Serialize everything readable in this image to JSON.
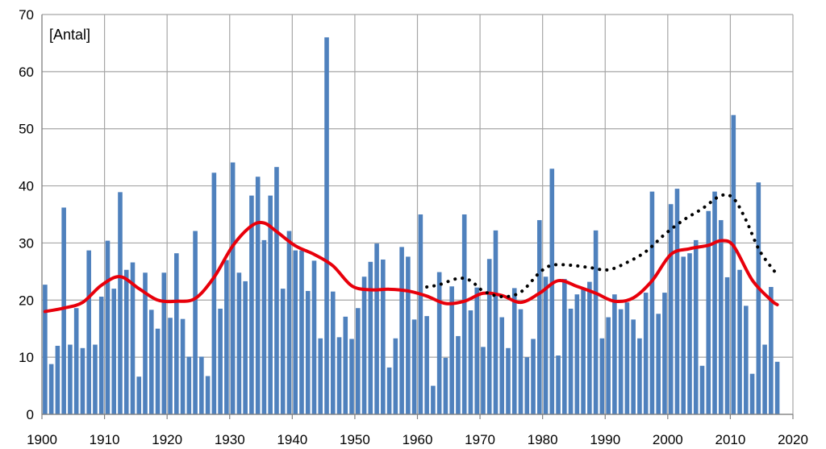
{
  "chart_data": {
    "type": "bar",
    "unit_label": "[Antal]",
    "x_range": [
      1900,
      2020
    ],
    "ylim": [
      0,
      70
    ],
    "x_ticks": [
      "1900",
      "1910",
      "1920",
      "1930",
      "1940",
      "1950",
      "1960",
      "1970",
      "1980",
      "1990",
      "2000",
      "2010",
      "2020"
    ],
    "y_ticks": [
      "0",
      "10",
      "20",
      "30",
      "40",
      "50",
      "60",
      "70"
    ],
    "grid": true,
    "colors": {
      "bars": "#4F81BD",
      "smooth": "#E8000B",
      "dotted": "#000000",
      "grid": "#A6A6A6"
    },
    "bars": {
      "x": [
        1900,
        1901,
        1902,
        1903,
        1904,
        1905,
        1906,
        1907,
        1908,
        1909,
        1910,
        1911,
        1912,
        1913,
        1914,
        1915,
        1916,
        1917,
        1918,
        1919,
        1920,
        1921,
        1922,
        1923,
        1924,
        1925,
        1926,
        1927,
        1928,
        1929,
        1930,
        1931,
        1932,
        1933,
        1934,
        1935,
        1936,
        1937,
        1938,
        1939,
        1940,
        1941,
        1942,
        1943,
        1944,
        1945,
        1946,
        1947,
        1948,
        1949,
        1950,
        1951,
        1952,
        1953,
        1954,
        1955,
        1956,
        1957,
        1958,
        1959,
        1960,
        1961,
        1962,
        1963,
        1964,
        1965,
        1966,
        1967,
        1968,
        1969,
        1970,
        1971,
        1972,
        1973,
        1974,
        1975,
        1976,
        1977,
        1978,
        1979,
        1980,
        1981,
        1982,
        1983,
        1984,
        1985,
        1986,
        1987,
        1988,
        1989,
        1990,
        1991,
        1992,
        1993,
        1994,
        1995,
        1996,
        1997,
        1998,
        1999,
        2000,
        2001,
        2002,
        2003,
        2004,
        2005,
        2006,
        2007,
        2008,
        2009,
        2010,
        2011,
        2012,
        2013,
        2014,
        2015,
        2016,
        2017
      ],
      "values": [
        22.7,
        8.8,
        12,
        36.2,
        12.2,
        18.6,
        11.6,
        28.7,
        12.2,
        20.6,
        30.4,
        22,
        38.9,
        25.3,
        26.6,
        6.6,
        24.8,
        18.3,
        15,
        24.8,
        16.9,
        28.2,
        16.7,
        10.1,
        32.1,
        10.1,
        6.7,
        42.3,
        18.5,
        27,
        44.1,
        24.8,
        23.3,
        38.3,
        41.6,
        30.5,
        38.3,
        43.3,
        22,
        32.1,
        28.7,
        28.7,
        21.6,
        26.9,
        13.3,
        66,
        21.5,
        13.5,
        17.1,
        13.2,
        18.6,
        24.1,
        26.7,
        29.9,
        27.1,
        8.2,
        13.3,
        29.3,
        27.6,
        16.6,
        35,
        17.2,
        5,
        24.9,
        9.9,
        22.4,
        13.7,
        35,
        18.2,
        22.2,
        11.8,
        27.2,
        32.2,
        17,
        11.6,
        22.1,
        18.4,
        10,
        13.2,
        34,
        24.1,
        43,
        10.3,
        23.7,
        18.5,
        21,
        22,
        23.2,
        32.2,
        13.3,
        17,
        21,
        18.4,
        19.6,
        16.6,
        13.3,
        21.3,
        39,
        17.6,
        21.3,
        36.8,
        39.5,
        27.6,
        28.2,
        30.5,
        8.5,
        35.6,
        39,
        34,
        24,
        52.4,
        25.3,
        19,
        7.1,
        40.6,
        12.2,
        22.3,
        9.2
      ]
    },
    "series": [
      {
        "style": "solid",
        "x": [
          1900,
          1903,
          1906,
          1909,
          1912,
          1915,
          1918,
          1921,
          1924,
          1927,
          1930,
          1933,
          1935,
          1937,
          1940,
          1943,
          1946,
          1949,
          1952,
          1955,
          1958,
          1961,
          1964,
          1967,
          1970,
          1973,
          1976,
          1979,
          1982,
          1985,
          1988,
          1991,
          1994,
          1997,
          2000,
          2003,
          2006,
          2008,
          2010,
          2013,
          2016,
          2017
        ],
        "y": [
          18,
          18.6,
          19.6,
          22.6,
          24.1,
          22,
          20,
          19.8,
          20.3,
          24,
          29.5,
          33,
          33.5,
          32,
          29.5,
          28,
          26,
          22.5,
          21.8,
          21.9,
          21.6,
          20.7,
          19.4,
          19.8,
          21.2,
          20.8,
          19.6,
          21.2,
          23.4,
          22.4,
          21.2,
          19.8,
          20.4,
          23.4,
          28,
          29,
          29.6,
          30.4,
          29.5,
          23.5,
          20,
          19.2
        ]
      },
      {
        "style": "dotted",
        "x": [
          1961,
          1963,
          1966,
          1968,
          1970,
          1973,
          1976,
          1979,
          1981,
          1984,
          1987,
          1990,
          1993,
          1996,
          1999,
          2002,
          2005,
          2008,
          2010,
          2012,
          2014,
          2016,
          2017
        ],
        "y": [
          22.3,
          22.7,
          23.8,
          23.4,
          21.6,
          20.6,
          21.4,
          24.8,
          26.1,
          26.1,
          25.7,
          25.3,
          26.6,
          28.5,
          31.5,
          34,
          36,
          38.3,
          37.8,
          34,
          29,
          25.8,
          24.5
        ]
      }
    ]
  }
}
